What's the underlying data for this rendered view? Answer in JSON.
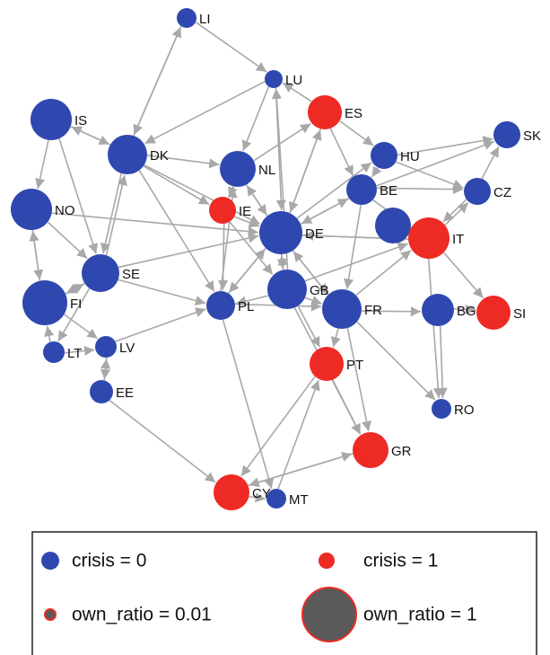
{
  "nodes": [
    {
      "label": "LI",
      "color": "#2f48b0"
    },
    {
      "label": "LU",
      "color": "#2f48b0"
    },
    {
      "label": "ES",
      "color": "#ee2a24"
    },
    {
      "label": "IS",
      "color": "#2f48b0"
    },
    {
      "label": "SK",
      "color": "#2f48b0"
    },
    {
      "label": "DK",
      "color": "#2f48b0"
    },
    {
      "label": "HU",
      "color": "#2f48b0"
    },
    {
      "label": "NL",
      "color": "#2f48b0"
    },
    {
      "label": "BE",
      "color": "#2f48b0"
    },
    {
      "label": "CZ",
      "color": "#2f48b0"
    },
    {
      "label": "IE",
      "color": "#ee2a24"
    },
    {
      "label": "NO",
      "color": "#2f48b0"
    },
    {
      "label": "DE",
      "color": "#2f48b0"
    },
    {
      "label": "IT",
      "color": "#ee2a24"
    },
    {
      "label": "SE",
      "color": "#2f48b0"
    },
    {
      "label": "FI",
      "color": "#2f48b0"
    },
    {
      "label": "GB",
      "color": "#2f48b0"
    },
    {
      "label": "FR",
      "color": "#2f48b0"
    },
    {
      "label": "BG",
      "color": "#2f48b0"
    },
    {
      "label": "SI",
      "color": "#ee2a24"
    },
    {
      "label": "PL",
      "color": "#2f48b0"
    },
    {
      "label": "LT",
      "color": "#2f48b0"
    },
    {
      "label": "LV",
      "color": "#2f48b0"
    },
    {
      "label": "PT",
      "color": "#ee2a24"
    },
    {
      "label": "EE",
      "color": "#2f48b0"
    },
    {
      "label": "RO",
      "color": "#2f48b0"
    },
    {
      "label": "GR",
      "color": "#ee2a24"
    },
    {
      "label": "CY",
      "color": "#ee2a24"
    },
    {
      "label": "MT",
      "color": "#2f48b0"
    }
  ],
  "legend": {
    "items": [
      {
        "label": "crisis = 0"
      },
      {
        "label": "crisis = 1"
      },
      {
        "label": "own_ratio = 0.01"
      },
      {
        "label": "own_ratio = 1"
      }
    ]
  }
}
